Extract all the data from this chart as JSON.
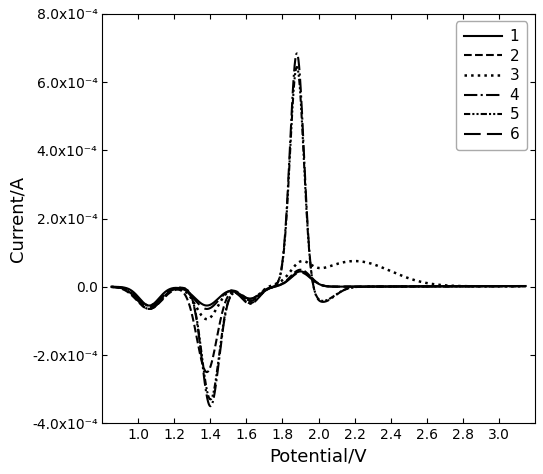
{
  "xlabel": "Potential/V",
  "ylabel": "Current/A",
  "xlim": [
    0.8,
    3.2
  ],
  "ylim": [
    -0.0004,
    0.0008
  ],
  "xticks": [
    1.0,
    1.2,
    1.4,
    1.6,
    1.8,
    2.0,
    2.2,
    2.4,
    2.6,
    2.8,
    3.0
  ],
  "yticks": [
    -0.0004,
    -0.0002,
    0.0,
    0.0002,
    0.0004,
    0.0006,
    0.0008
  ],
  "ytick_labels": [
    "-4.0x10-4",
    "-2.0x10-4",
    "0.0",
    "2.0x10-4",
    "4.0x10-4",
    "6.0x10-4",
    "8.0x10-4"
  ],
  "legend_labels": [
    "1",
    "2",
    "3",
    "4",
    "5",
    "6"
  ],
  "xlabel_fontsize": 13,
  "ylabel_fontsize": 13,
  "tick_labelsize": 10,
  "legend_fontsize": 11,
  "figsize": [
    5.43,
    4.74
  ],
  "dpi": 100
}
